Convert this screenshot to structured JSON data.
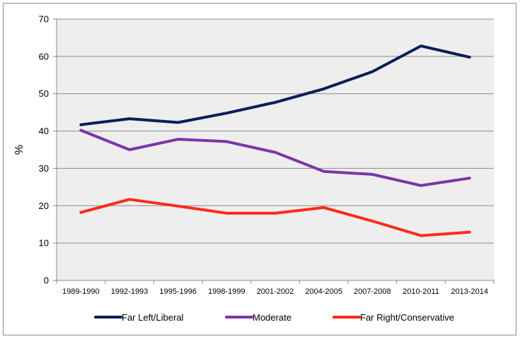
{
  "chart_data": {
    "type": "line",
    "title": "",
    "xlabel": "",
    "ylabel": "%",
    "ylim": [
      0,
      70
    ],
    "yticks": [
      "0",
      "10",
      "20",
      "30",
      "40",
      "50",
      "60",
      "70"
    ],
    "categories": [
      "1989-1990",
      "1992-1993",
      "1995-1996",
      "1998-1999",
      "2001-2002",
      "2004-2005",
      "2007-2008",
      "2010-2011",
      "2013-2014"
    ],
    "grid": true,
    "legend_position": "bottom",
    "plot_background": "#eeeeee",
    "series": [
      {
        "name": "Far Left/Liberal",
        "color": "#0a1e5a",
        "values": [
          41.7,
          43.3,
          42.3,
          44.8,
          47.7,
          51.3,
          55.9,
          62.8,
          59.8
        ]
      },
      {
        "name": "Moderate",
        "color": "#7a35a8",
        "values": [
          40.2,
          35.0,
          37.8,
          37.2,
          34.3,
          29.2,
          28.4,
          25.4,
          27.4
        ]
      },
      {
        "name": "Far Right/Conservative",
        "color": "#ff2a1a",
        "values": [
          18.2,
          21.7,
          19.9,
          18.0,
          18.0,
          19.5,
          15.9,
          12.0,
          12.9
        ]
      }
    ]
  }
}
